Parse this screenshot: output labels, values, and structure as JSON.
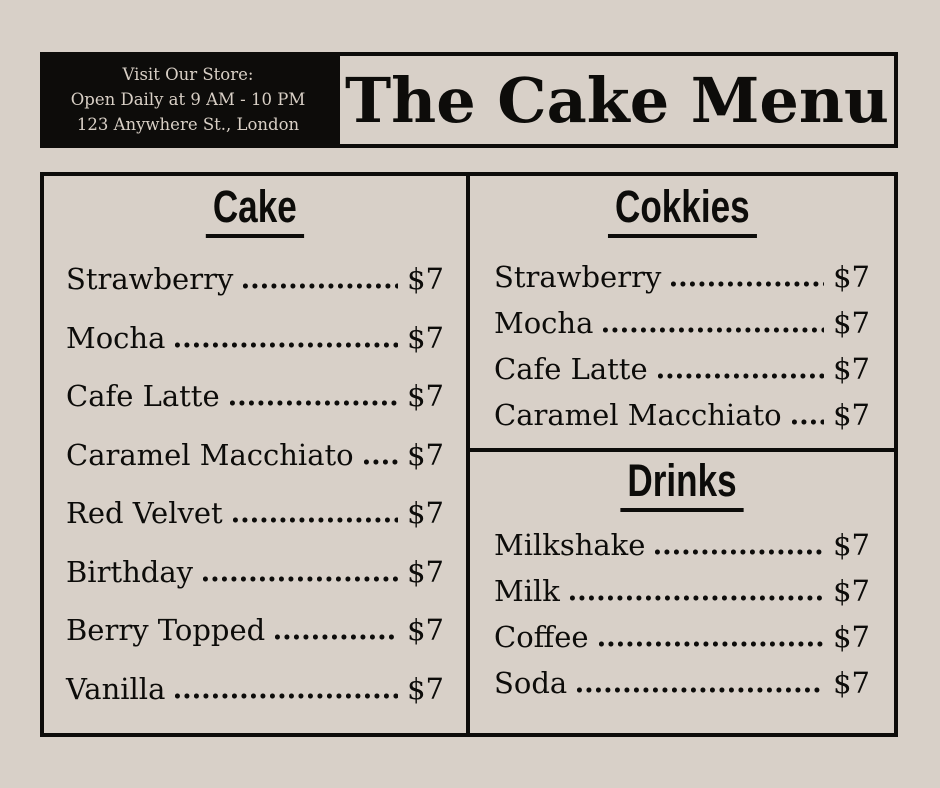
{
  "theme": {
    "background": "#d8d0c8",
    "ink": "#0d0c0a",
    "header_box_bg": "#0d0c0a",
    "header_box_text": "#d8cfc5"
  },
  "header": {
    "store_info": {
      "line1": "Visit Our Store:",
      "line2": "Open Daily at 9 AM - 10 PM",
      "line3": "123 Anywhere St., London"
    },
    "title": "The Cake Menu"
  },
  "menu": {
    "sections": [
      {
        "title": "Cake",
        "items": [
          {
            "name": "Strawberry",
            "price": "$7"
          },
          {
            "name": "Mocha",
            "price": "$7"
          },
          {
            "name": "Cafe Latte",
            "price": "$7"
          },
          {
            "name": "Caramel Macchiato",
            "price": "$7"
          },
          {
            "name": "Red Velvet",
            "price": "$7"
          },
          {
            "name": "Birthday",
            "price": "$7"
          },
          {
            "name": "Berry Topped",
            "price": "$7"
          },
          {
            "name": "Vanilla",
            "price": "$7"
          }
        ]
      },
      {
        "title": "Cokkies",
        "items": [
          {
            "name": "Strawberry",
            "price": "$7"
          },
          {
            "name": "Mocha",
            "price": "$7"
          },
          {
            "name": "Cafe Latte",
            "price": "$7"
          },
          {
            "name": "Caramel Macchiato",
            "price": "$7"
          }
        ]
      },
      {
        "title": "Drinks",
        "items": [
          {
            "name": "Milkshake",
            "price": "$7"
          },
          {
            "name": "Milk",
            "price": "$7"
          },
          {
            "name": "Coffee",
            "price": "$7"
          },
          {
            "name": "Soda",
            "price": "$7"
          }
        ]
      }
    ]
  }
}
